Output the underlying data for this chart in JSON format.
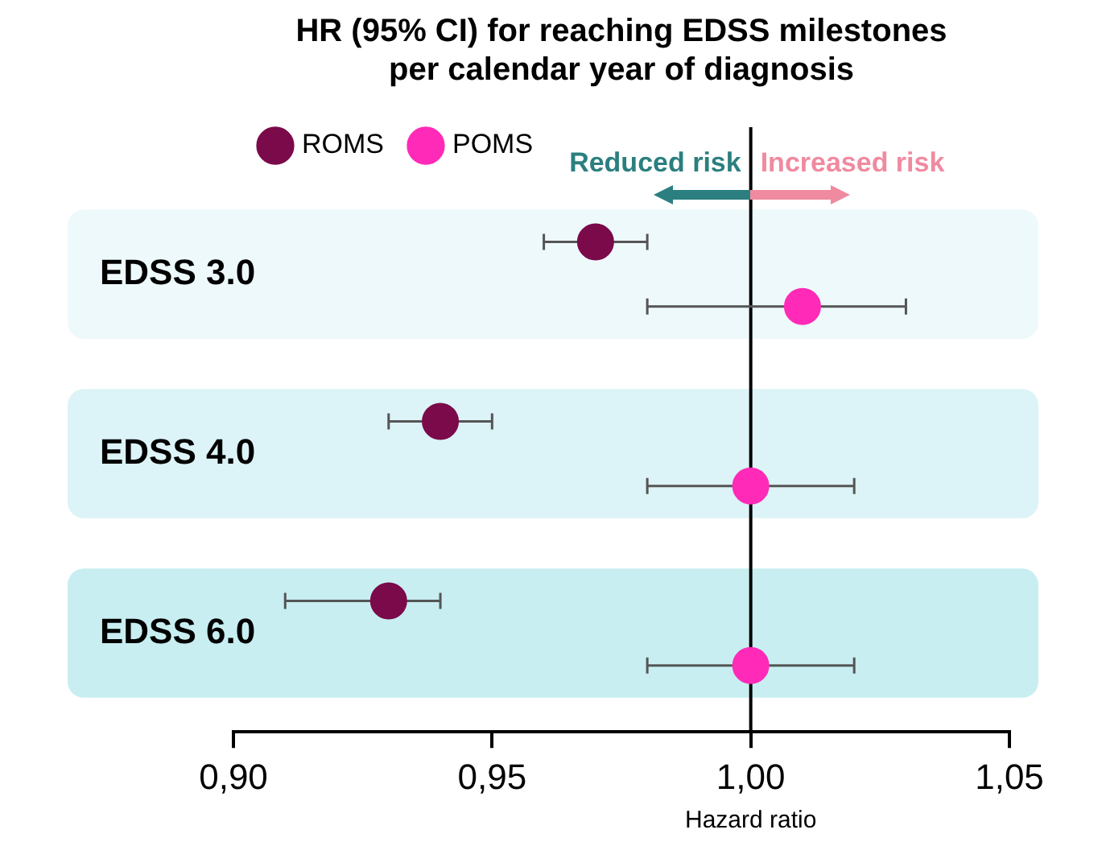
{
  "chart_data": {
    "type": "scatter",
    "orientation": "horizontal",
    "title": "HR (95% CI) for reaching EDSS milestones\nper calendar year of diagnosis",
    "categories": [
      "EDSS 3.0",
      "EDSS 4.0",
      "EDSS 6.0"
    ],
    "series": [
      {
        "name": "ROMS",
        "color": "#7b0a4b",
        "values": [
          0.97,
          0.94,
          0.93
        ],
        "errors": [
          [
            0.96,
            0.98
          ],
          [
            0.93,
            0.95
          ],
          [
            0.91,
            0.94
          ]
        ]
      },
      {
        "name": "POMS",
        "color": "#ff2bb8",
        "values": [
          1.01,
          1.0,
          1.0
        ],
        "errors": [
          [
            0.98,
            1.03
          ],
          [
            0.98,
            1.02
          ],
          [
            0.98,
            1.02
          ]
        ]
      }
    ],
    "xlabel": "Hazard ratio",
    "xlim": [
      0.9,
      1.05
    ],
    "xticks": [
      {
        "value": 0.9,
        "label": "0,90"
      },
      {
        "value": 0.95,
        "label": "0,95"
      },
      {
        "value": 1.0,
        "label": "1,00"
      },
      {
        "value": 1.05,
        "label": "1,05"
      }
    ],
    "ref_lines": [
      {
        "axis": "x",
        "value": 1.0,
        "label": null,
        "color": "#000000"
      }
    ],
    "bands": [
      {
        "axis": "y",
        "from": "EDSS 3.0",
        "to": "EDSS 3.0",
        "label": null,
        "color": "#eef9fb"
      },
      {
        "axis": "y",
        "from": "EDSS 4.0",
        "to": "EDSS 4.0",
        "label": null,
        "color": "#dcf3f7"
      },
      {
        "axis": "y",
        "from": "EDSS 6.0",
        "to": "EDSS 6.0",
        "label": null,
        "color": "#c8eef1"
      }
    ],
    "annotations": [
      "Reduced risk",
      "Increased risk"
    ],
    "legend": "top left",
    "marker": "circle",
    "grid": false
  }
}
